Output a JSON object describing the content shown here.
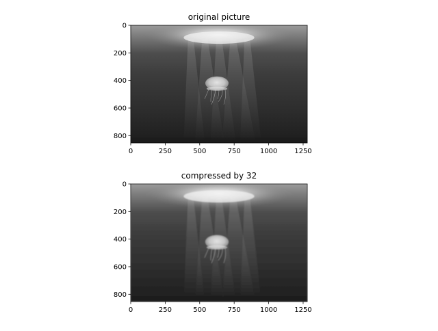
{
  "figure": {
    "background": "#ffffff",
    "colormap": "gray"
  },
  "chart_data": [
    {
      "type": "image",
      "title": "original picture",
      "xlim": [
        0,
        1280
      ],
      "ylim": [
        0,
        853
      ],
      "y_inverted": true,
      "x_ticks": [
        "0",
        "250",
        "500",
        "750",
        "1000",
        "1250"
      ],
      "y_ticks": [
        "0",
        "200",
        "400",
        "600",
        "800"
      ]
    },
    {
      "type": "image",
      "title": "compressed by 32",
      "xlim": [
        0,
        1280
      ],
      "ylim": [
        0,
        853
      ],
      "y_inverted": true,
      "x_ticks": [
        "0",
        "250",
        "500",
        "750",
        "1000",
        "1250"
      ],
      "y_ticks": [
        "0",
        "200",
        "400",
        "600",
        "800"
      ]
    }
  ]
}
